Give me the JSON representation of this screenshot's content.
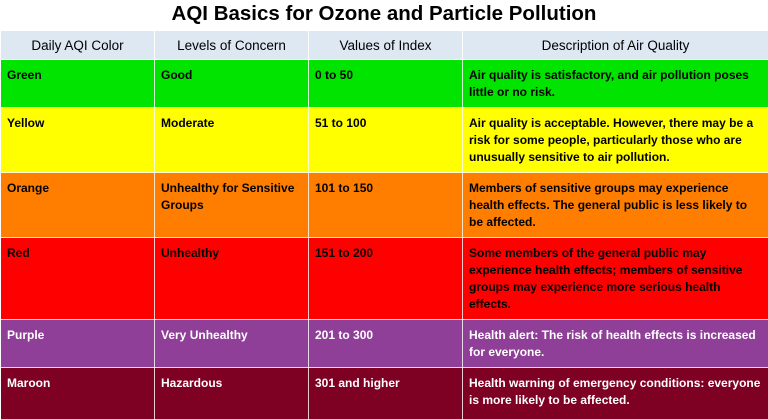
{
  "title": "AQI Basics for Ozone and Particle Pollution",
  "headers": [
    "Daily AQI Color",
    "Levels of Concern",
    "Values of Index",
    "Description of Air Quality"
  ],
  "rows": [
    {
      "color": "Green",
      "level": "Good",
      "values": "0 to 50",
      "description": "Air quality is satisfactory, and air pollution poses little or no risk.",
      "bg": "#00e400",
      "fg": "#000000"
    },
    {
      "color": "Yellow",
      "level": "Moderate",
      "values": "51 to 100",
      "description": "Air quality is acceptable. However, there may be a risk for some people, particularly those who are unusually sensitive to air pollution.",
      "bg": "#ffff00",
      "fg": "#000000"
    },
    {
      "color": "Orange",
      "level": "Unhealthy for Sensitive Groups",
      "values": "101 to 150",
      "description": "Members of sensitive groups may experience health effects. The general public is less likely to be affected.",
      "bg": "#ff7e00",
      "fg": "#000000"
    },
    {
      "color": "Red",
      "level": "Unhealthy",
      "values": "151 to 200",
      "description": "Some members of the general public may experience health effects; members of sensitive groups may experience more serious health effects.",
      "bg": "#ff0000",
      "fg": "#000000"
    },
    {
      "color": "Purple",
      "level": "Very Unhealthy",
      "values": "201 to 300",
      "description": "Health alert: The risk of health effects is increased for everyone.",
      "bg": "#8f3f97",
      "fg": "#ffffff"
    },
    {
      "color": "Maroon",
      "level": "Hazardous",
      "values": "301 and higher",
      "description": "Health warning of emergency conditions: everyone is more likely to be affected.",
      "bg": "#7e0023",
      "fg": "#ffffff"
    }
  ],
  "header_bg": "#dde8f2"
}
